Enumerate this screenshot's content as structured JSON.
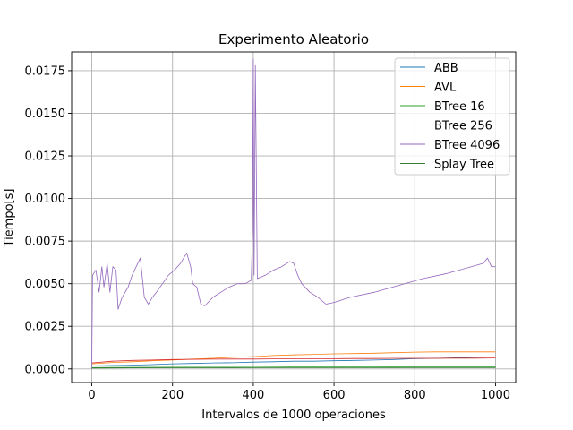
{
  "chart_data": {
    "type": "line",
    "title": "Experimento Aleatorio",
    "xlabel": "Intervalos de 1000 operaciones",
    "ylabel": "Tiempo[s]",
    "xlim": [
      -50,
      1050
    ],
    "ylim": [
      -0.0008,
      0.0186
    ],
    "xticks": [
      0,
      200,
      400,
      600,
      800,
      1000
    ],
    "xtick_labels": [
      "0",
      "200",
      "400",
      "600",
      "800",
      "1000"
    ],
    "yticks": [
      0.0,
      0.0025,
      0.005,
      0.0075,
      0.01,
      0.0125,
      0.015,
      0.0175
    ],
    "ytick_labels": [
      "0.0000",
      "0.0025",
      "0.0050",
      "0.0075",
      "0.0100",
      "0.0125",
      "0.0150",
      "0.0175"
    ],
    "grid": true,
    "legend_position": "top-right",
    "series": [
      {
        "name": "ABB",
        "color": "#1f77b4",
        "x": [
          0,
          50,
          100,
          150,
          200,
          250,
          300,
          350,
          400,
          450,
          500,
          550,
          600,
          650,
          700,
          750,
          800,
          850,
          900,
          950,
          1000
        ],
        "y": [
          0.00018,
          0.0002,
          0.00022,
          0.00025,
          0.0003,
          0.00032,
          0.00035,
          0.00036,
          0.0004,
          0.00042,
          0.00045,
          0.00045,
          0.00048,
          0.0005,
          0.00052,
          0.00055,
          0.0006,
          0.00062,
          0.00065,
          0.00068,
          0.0007
        ]
      },
      {
        "name": "AVL",
        "color": "#ff7f0e",
        "x": [
          0,
          50,
          100,
          150,
          200,
          250,
          300,
          350,
          400,
          450,
          500,
          550,
          600,
          650,
          700,
          750,
          800,
          850,
          900,
          950,
          1000
        ],
        "y": [
          0.0003,
          0.00038,
          0.00042,
          0.00048,
          0.00052,
          0.00058,
          0.00062,
          0.00068,
          0.00072,
          0.00078,
          0.00082,
          0.00085,
          0.00088,
          0.0009,
          0.00092,
          0.00095,
          0.00098,
          0.001,
          0.001,
          0.001,
          0.001
        ]
      },
      {
        "name": "BTree 16",
        "color": "#2ca02c",
        "x": [
          0,
          100,
          200,
          300,
          400,
          500,
          600,
          700,
          800,
          900,
          1000
        ],
        "y": [
          8e-05,
          9e-05,
          0.0001,
          0.0001,
          0.0001,
          0.00011,
          0.00011,
          0.00011,
          0.00012,
          0.00012,
          0.00012
        ]
      },
      {
        "name": "BTree 256",
        "color": "#d62728",
        "x": [
          0,
          50,
          100,
          150,
          200,
          250,
          300,
          350,
          400,
          450,
          500,
          550,
          600,
          650,
          700,
          750,
          800,
          850,
          900,
          950,
          1000
        ],
        "y": [
          0.00035,
          0.00045,
          0.0005,
          0.00052,
          0.00055,
          0.00056,
          0.00057,
          0.00058,
          0.00058,
          0.00059,
          0.0006,
          0.0006,
          0.0006,
          0.00061,
          0.00061,
          0.00062,
          0.00062,
          0.00062,
          0.00063,
          0.00063,
          0.00064
        ]
      },
      {
        "name": "BTree 4096",
        "color": "#9467bd",
        "x": [
          0,
          2,
          10,
          18,
          25,
          30,
          38,
          45,
          52,
          60,
          65,
          75,
          90,
          100,
          110,
          120,
          130,
          140,
          150,
          160,
          175,
          190,
          205,
          220,
          235,
          245,
          250,
          260,
          270,
          280,
          300,
          320,
          340,
          360,
          380,
          395,
          398,
          400,
          402,
          405,
          410,
          430,
          450,
          470,
          490,
          500,
          510,
          520,
          540,
          560,
          580,
          600,
          640,
          700,
          760,
          820,
          880,
          940,
          970,
          980,
          990,
          1000
        ],
        "y": [
          0.0,
          0.0055,
          0.0058,
          0.0045,
          0.006,
          0.0048,
          0.0062,
          0.0045,
          0.006,
          0.0058,
          0.0035,
          0.0042,
          0.0048,
          0.0055,
          0.006,
          0.0065,
          0.0042,
          0.0038,
          0.0042,
          0.0045,
          0.005,
          0.0055,
          0.0058,
          0.0062,
          0.0068,
          0.006,
          0.005,
          0.0048,
          0.0038,
          0.0037,
          0.0042,
          0.0045,
          0.0048,
          0.005,
          0.005,
          0.0052,
          0.0082,
          0.0182,
          0.0055,
          0.0178,
          0.0053,
          0.0055,
          0.0058,
          0.006,
          0.0063,
          0.0062,
          0.0055,
          0.005,
          0.0045,
          0.0042,
          0.0038,
          0.0039,
          0.0042,
          0.0045,
          0.0049,
          0.0053,
          0.0056,
          0.006,
          0.0062,
          0.0065,
          0.006,
          0.006
        ]
      },
      {
        "name": "Splay Tree",
        "color": "#3a7d3a",
        "x": [
          0,
          100,
          200,
          300,
          400,
          500,
          600,
          700,
          800,
          900,
          1000
        ],
        "y": [
          5e-05,
          6e-05,
          6e-05,
          6e-05,
          7e-05,
          7e-05,
          7e-05,
          7e-05,
          8e-05,
          8e-05,
          8e-05
        ]
      }
    ]
  }
}
